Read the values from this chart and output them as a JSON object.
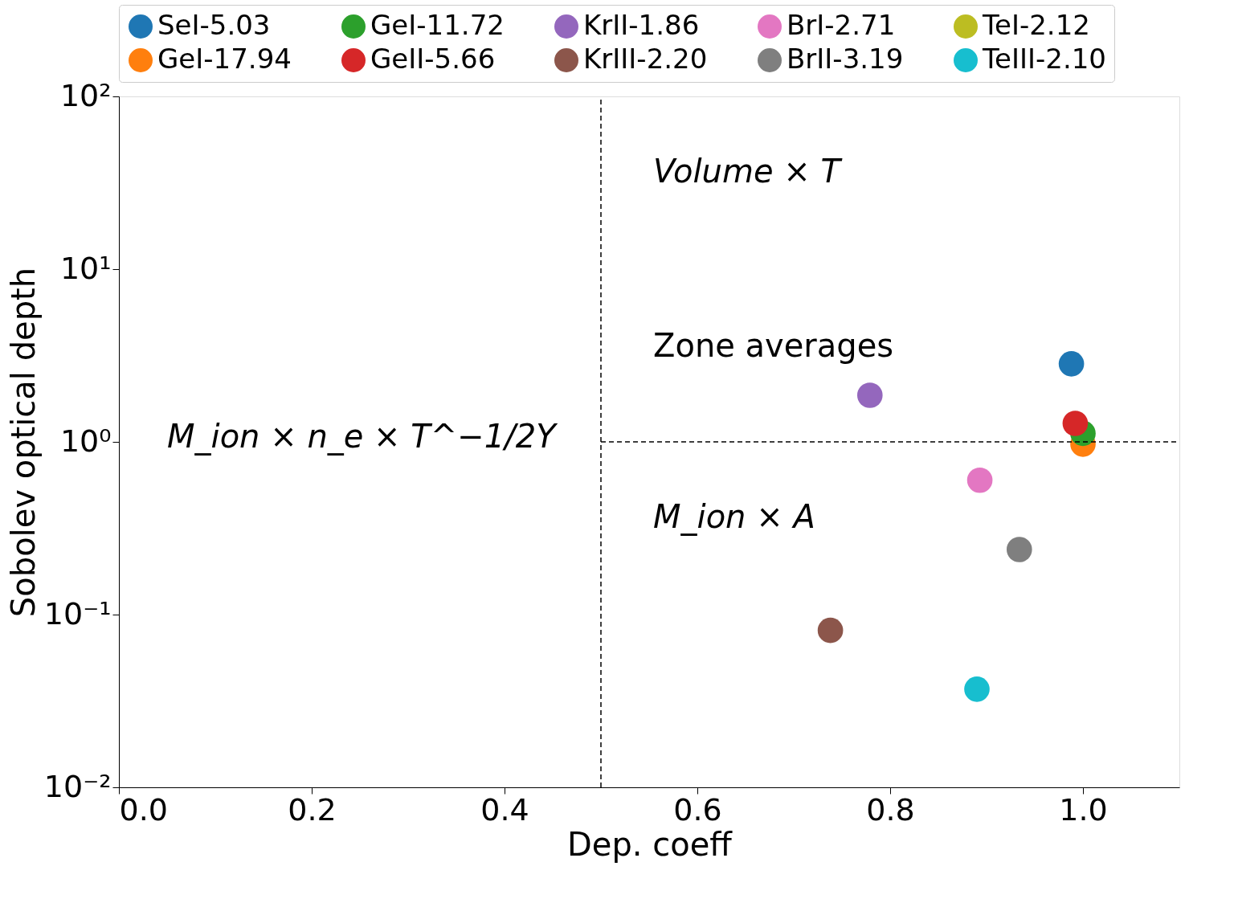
{
  "chart_data": {
    "type": "scatter",
    "xlabel": "Dep. coeff",
    "ylabel": "Sobolev optical depth",
    "log": "y",
    "xlim": [
      0.0,
      1.1
    ],
    "xticks": [
      {
        "value": 0.0,
        "label": "0.0"
      },
      {
        "value": 0.2,
        "label": "0.2"
      },
      {
        "value": 0.4,
        "label": "0.4"
      },
      {
        "value": 0.6,
        "label": "0.6"
      },
      {
        "value": 0.8,
        "label": "0.8"
      },
      {
        "value": 1.0,
        "label": "1.0"
      }
    ],
    "ylim": [
      0.01,
      100
    ],
    "yticks": [
      {
        "value": 0.01,
        "label": "10⁻²"
      },
      {
        "value": 0.1,
        "label": "10⁻¹"
      },
      {
        "value": 1,
        "label": "10⁰"
      },
      {
        "value": 10,
        "label": "10¹"
      },
      {
        "value": 100,
        "label": "10²"
      }
    ],
    "grid": false,
    "legend": "top",
    "marker": "circle",
    "ref_lines": [
      {
        "axis": "x",
        "value": 0.5,
        "line_style": "dashed",
        "color": "#000000"
      },
      {
        "axis": "y",
        "value": 1,
        "line_style": "dashed",
        "color": "#000000"
      }
    ],
    "annotations": [
      "Volume × T",
      "Zone averages",
      "M_ion × n_e × T^−1/2Y",
      "M_ion × A"
    ],
    "series": [
      {
        "name": "SeI-5.03",
        "color": "#1f77b4",
        "x": [
          0.988
        ],
        "values": [
          2.83
        ]
      },
      {
        "name": "GeI-17.94",
        "color": "#ff7f0e",
        "x": [
          1.0
        ],
        "values": [
          0.97
        ]
      },
      {
        "name": "GeI-11.72",
        "color": "#2ca02c",
        "x": [
          1.0
        ],
        "values": [
          1.12
        ]
      },
      {
        "name": "GeII-5.66",
        "color": "#d62728",
        "x": [
          0.992
        ],
        "values": [
          1.28
        ]
      },
      {
        "name": "KrII-1.86",
        "color": "#9467bd",
        "x": [
          0.779
        ],
        "values": [
          1.86
        ]
      },
      {
        "name": "KrIII-2.20",
        "color": "#8c564b",
        "x": [
          0.738
        ],
        "values": [
          0.081
        ]
      },
      {
        "name": "BrI-2.71",
        "color": "#e377c2",
        "x": [
          0.893
        ],
        "values": [
          0.6
        ]
      },
      {
        "name": "BrII-3.19",
        "color": "#7f7f7f",
        "x": [
          0.934
        ],
        "values": [
          0.238
        ]
      },
      {
        "name": "TeI-2.12",
        "color": "#bcbd22",
        "x": [
          null
        ],
        "values": [
          null
        ]
      },
      {
        "name": "TeIII-2.10",
        "color": "#17becf",
        "x": [
          0.89
        ],
        "values": [
          0.037
        ]
      }
    ]
  }
}
